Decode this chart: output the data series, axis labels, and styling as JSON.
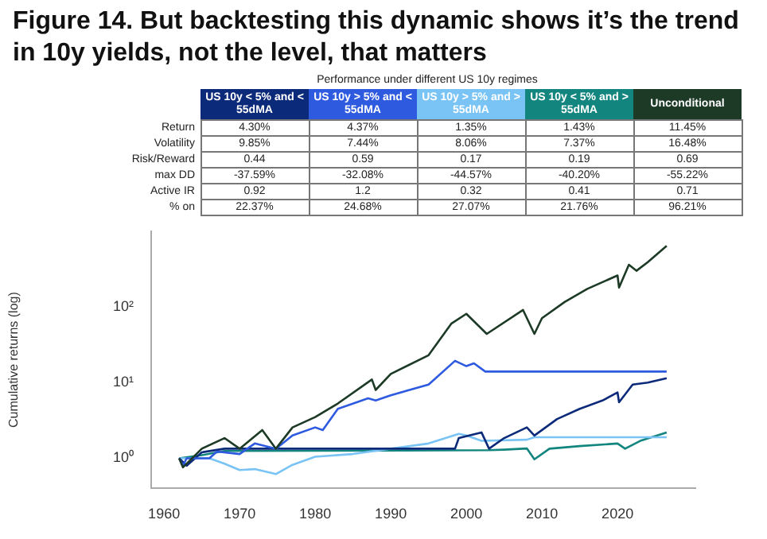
{
  "chart_data": [
    {
      "type": "other",
      "title": "Figure 14. But backtesting this dynamic shows it’s the trend in 10y yields, not the level, that matters",
      "subtitle": "Performance under different US 10y regimes",
      "categories": [
        "US 10y < 5% and < 55dMA",
        "US 10y > 5% and < 55dMA",
        "US 10y > 5% and > 55dMA",
        "US 10y < 5% and > 55dMA",
        "Unconditional"
      ],
      "colors": [
        "#0c2a7a",
        "#2e5ae0",
        "#79c4f5",
        "#12857f",
        "#1c3a26"
      ],
      "y_categories": [
        "Return",
        "Volatility",
        "Risk/Reward",
        "max DD",
        "Active IR",
        "% on"
      ],
      "cell_labels": [
        [
          "4.30%",
          "4.37%",
          "1.35%",
          "1.43%",
          "11.45%"
        ],
        [
          "9.85%",
          "7.44%",
          "8.06%",
          "7.37%",
          "16.48%"
        ],
        [
          "0.44",
          "0.59",
          "0.17",
          "0.19",
          "0.69"
        ],
        [
          "-37.59%",
          "-32.08%",
          "-44.57%",
          "-40.20%",
          "-55.22%"
        ],
        [
          "0.92",
          "1.2",
          "0.32",
          "0.41",
          "0.71"
        ],
        [
          "22.37%",
          "24.68%",
          "27.07%",
          "21.76%",
          "96.21%"
        ]
      ]
    },
    {
      "type": "line",
      "ylabel": "Cumulative returns (log)",
      "log": "y",
      "xlim": [
        1958.3,
        2030.3
      ],
      "xticks": [
        1960,
        1970,
        1980,
        1990,
        2000,
        2010,
        2020
      ],
      "ylim": [
        0.4,
        1000
      ],
      "yticks": [
        {
          "value": 1,
          "label": "10⁰"
        },
        {
          "value": 10,
          "label": "10¹"
        },
        {
          "value": 100,
          "label": "10²"
        }
      ],
      "series": [
        {
          "color": "#1c3a26",
          "x": [
            1962,
            1962.5,
            1965,
            1968,
            1970,
            1973,
            1974.8,
            1977,
            1980,
            1983,
            1987.5,
            1988,
            1990,
            1995,
            1998,
            2000,
            2002.7,
            2007.5,
            2009,
            2010,
            2013,
            2016,
            2020,
            2020.2,
            2021.5,
            2022.5,
            2024,
            2026.5
          ],
          "values": [
            1.0,
            0.76,
            1.34,
            1.85,
            1.34,
            2.36,
            1.34,
            2.56,
            3.5,
            5.3,
            11,
            8,
            13,
            23,
            60,
            81,
            44,
            91,
            44,
            71,
            116,
            173,
            260,
            180,
            360,
            300,
            390,
            640
          ]
        },
        {
          "color": "#2e5ae0",
          "x": [
            1962,
            1962.5,
            1963,
            1966,
            1967,
            1970,
            1972,
            1974.8,
            1977,
            1980,
            1981,
            1983,
            1987,
            1988,
            1990,
            1995,
            1998.5,
            2000,
            2001,
            2002.5,
            2026.5
          ],
          "values": [
            1.0,
            0.8,
            1.0,
            1.0,
            1.23,
            1.14,
            1.57,
            1.34,
            2.0,
            2.56,
            2.36,
            4.5,
            6.2,
            5.8,
            6.8,
            9.4,
            19.4,
            16.5,
            18,
            14,
            14
          ]
        },
        {
          "color": "#0c2a7a",
          "x": [
            1962,
            1963,
            1965,
            1968,
            1998.5,
            1999,
            2002,
            2003,
            2005,
            2008,
            2009,
            2012,
            2015,
            2018,
            2020,
            2020.2,
            2022,
            2024,
            2026.5
          ],
          "values": [
            1.0,
            0.8,
            1.2,
            1.34,
            1.34,
            1.85,
            2.2,
            1.34,
            1.85,
            2.56,
            2.0,
            3.3,
            4.5,
            5.8,
            7.4,
            5.5,
            9.4,
            10,
            11.4
          ]
        },
        {
          "color": "#79c4f5",
          "x": [
            1962,
            1966,
            1968,
            1970,
            1972,
            1974.8,
            1977,
            1980,
            1985,
            1990,
            1995,
            1999,
            2000,
            2002,
            2008,
            2009,
            2026.5
          ],
          "values": [
            1.0,
            1.0,
            0.85,
            0.7,
            0.72,
            0.62,
            0.82,
            1.05,
            1.14,
            1.34,
            1.57,
            2.1,
            2.0,
            1.7,
            1.76,
            1.9,
            1.9
          ]
        },
        {
          "color": "#12857f",
          "x": [
            1962,
            1965,
            1968,
            2003,
            2005,
            2008,
            2009,
            2011,
            2015,
            2020,
            2021,
            2023,
            2026.5
          ],
          "values": [
            1.0,
            1.1,
            1.25,
            1.28,
            1.3,
            1.35,
            0.97,
            1.34,
            1.45,
            1.57,
            1.34,
            1.7,
            2.2
          ]
        }
      ]
    }
  ]
}
